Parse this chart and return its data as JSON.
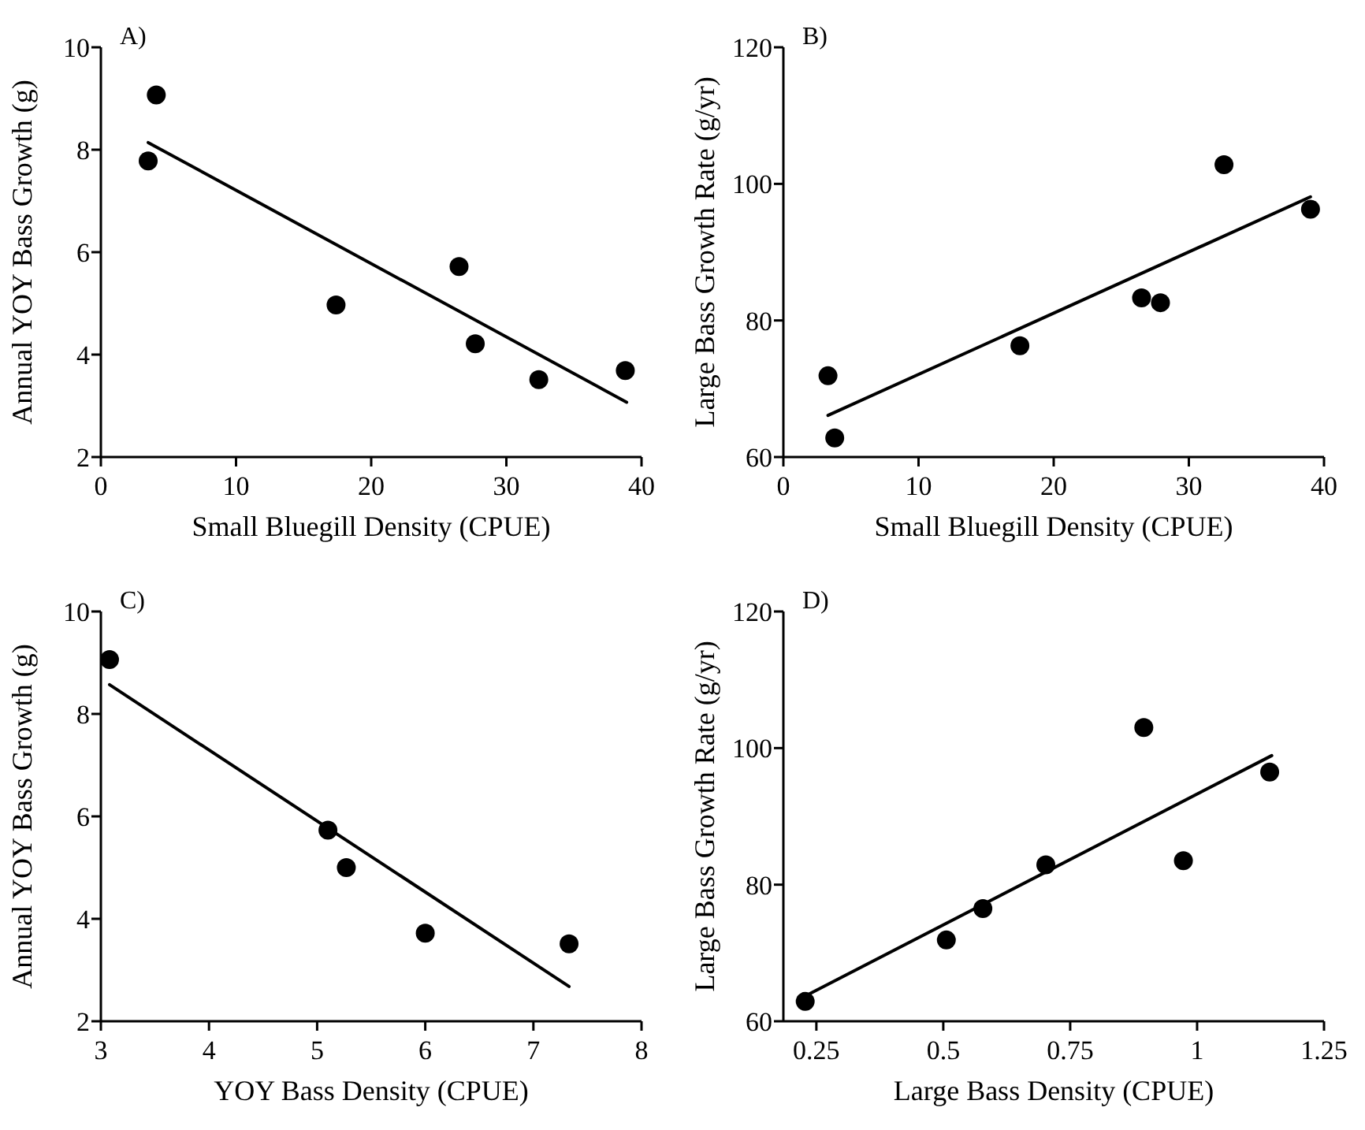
{
  "chart_data": [
    {
      "type": "scatter",
      "title": "A)",
      "xlabel": "Small Bluegill Density (CPUE)",
      "ylabel": "Annual YOY Bass Growth (g)",
      "xlim": [
        0,
        40
      ],
      "xticks": [
        0,
        10,
        20,
        30,
        40
      ],
      "ylim": [
        2,
        10
      ],
      "yticks": [
        2,
        4,
        6,
        8,
        10
      ],
      "grid": false,
      "series": [
        {
          "color": "#000000",
          "marker": "circle",
          "x": [
            3.5,
            4.1,
            17.4,
            26.5,
            27.7,
            32.4,
            38.8
          ],
          "values": [
            7.78,
            9.07,
            4.97,
            5.72,
            4.21,
            3.51,
            3.69
          ]
        },
        {
          "type": "line",
          "marker": "none",
          "color": "#000000",
          "x": [
            3.5,
            38.9
          ],
          "values": [
            8.14,
            3.07
          ]
        }
      ]
    },
    {
      "type": "scatter",
      "title": "B)",
      "xlabel": "Small Bluegill Density (CPUE)",
      "ylabel": "Large Bass Growth Rate (g/yr)",
      "xlim": [
        0,
        40
      ],
      "xticks": [
        0,
        10,
        20,
        30,
        40
      ],
      "ylim": [
        60,
        120
      ],
      "yticks": [
        60,
        80,
        100,
        120
      ],
      "grid": false,
      "series": [
        {
          "color": "#000000",
          "marker": "circle",
          "x": [
            3.3,
            3.8,
            17.5,
            26.5,
            27.9,
            32.6,
            39.0
          ],
          "values": [
            71.9,
            62.8,
            76.3,
            83.3,
            82.6,
            102.8,
            96.3
          ]
        },
        {
          "type": "line",
          "marker": "none",
          "color": "#000000",
          "x": [
            3.3,
            39.0
          ],
          "values": [
            66.1,
            98.1
          ]
        }
      ]
    },
    {
      "type": "scatter",
      "title": "C)",
      "xlabel": "YOY Bass Density (CPUE)",
      "ylabel": "Annual YOY Bass Growth (g)",
      "xlim": [
        3,
        8
      ],
      "xticks": [
        3,
        4,
        5,
        6,
        7,
        8
      ],
      "ylim": [
        2,
        10
      ],
      "yticks": [
        2,
        4,
        6,
        8,
        10
      ],
      "grid": false,
      "series": [
        {
          "color": "#000000",
          "marker": "circle",
          "x": [
            3.08,
            5.1,
            5.27,
            6.0,
            7.33
          ],
          "values": [
            9.06,
            5.73,
            5.0,
            3.72,
            3.51
          ]
        },
        {
          "type": "line",
          "marker": "none",
          "color": "#000000",
          "x": [
            3.08,
            7.33
          ],
          "values": [
            8.57,
            2.68
          ]
        }
      ]
    },
    {
      "type": "scatter",
      "title": "D)",
      "xlabel": "Large Bass Density (CPUE)",
      "ylabel": "Large Bass Growth Rate (g/yr)",
      "xlim": [
        0.185,
        1.25
      ],
      "xticks": [
        0.25,
        0.5,
        0.75,
        1,
        1.25
      ],
      "ylim": [
        60,
        120
      ],
      "yticks": [
        60,
        80,
        100,
        120
      ],
      "grid": false,
      "series": [
        {
          "color": "#000000",
          "marker": "circle",
          "x": [
            0.228,
            0.506,
            0.578,
            0.702,
            0.895,
            0.973,
            1.143
          ],
          "values": [
            62.9,
            71.9,
            76.5,
            82.9,
            103.0,
            83.5,
            96.5
          ]
        },
        {
          "type": "line",
          "marker": "none",
          "color": "#000000",
          "x": [
            0.228,
            1.147
          ],
          "values": [
            63.7,
            98.9
          ]
        }
      ]
    }
  ]
}
